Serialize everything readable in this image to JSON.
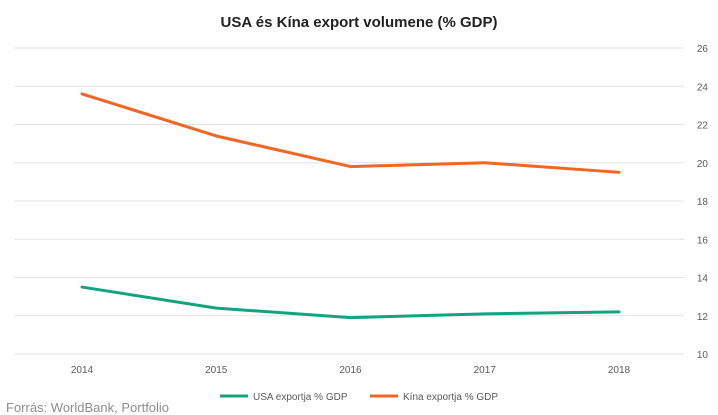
{
  "colors": {
    "usa": "#14a37f",
    "china": "#f26522",
    "grid": "#e2e2e2",
    "text": "#595959"
  },
  "chart_data": {
    "type": "line",
    "title": "USA és Kína  export volumene (% GDP)",
    "categories": [
      "2014",
      "2015",
      "2016",
      "2017",
      "2018"
    ],
    "series": [
      {
        "name": "USA exportja % GDP",
        "color": "#14a37f",
        "values": [
          13.5,
          12.4,
          11.9,
          12.1,
          12.2
        ]
      },
      {
        "name": "Kína exportja % GDP",
        "color": "#f26522",
        "values": [
          23.6,
          21.4,
          19.8,
          20.0,
          19.5
        ]
      }
    ],
    "ylim": [
      10,
      26
    ],
    "yticks": [
      "10",
      "12",
      "14",
      "16",
      "18",
      "20",
      "22",
      "24",
      "26"
    ],
    "y_axis_side": "right",
    "grid": true,
    "legend": "bottom",
    "source": "Forrás: WorldBank, Portfolio"
  }
}
